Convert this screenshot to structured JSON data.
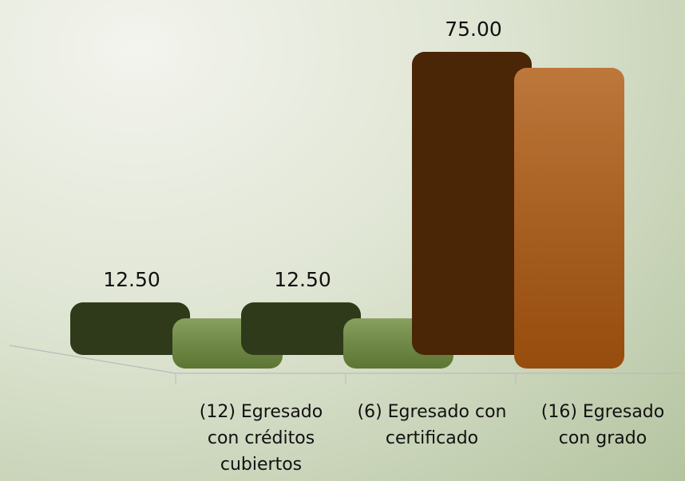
{
  "chart_data": {
    "type": "bar3d",
    "categories": [
      "(12) Egresado con créditos cubiertos",
      "(6) Egresado con certificado",
      "(16) Egresado con grado"
    ],
    "values": [
      12.5,
      12.5,
      75
    ],
    "value_labels": [
      "12.50",
      "12.50",
      "75.00"
    ],
    "colors": [
      "#6e8b3d",
      "#6e8b3d",
      "#b05a10"
    ]
  }
}
